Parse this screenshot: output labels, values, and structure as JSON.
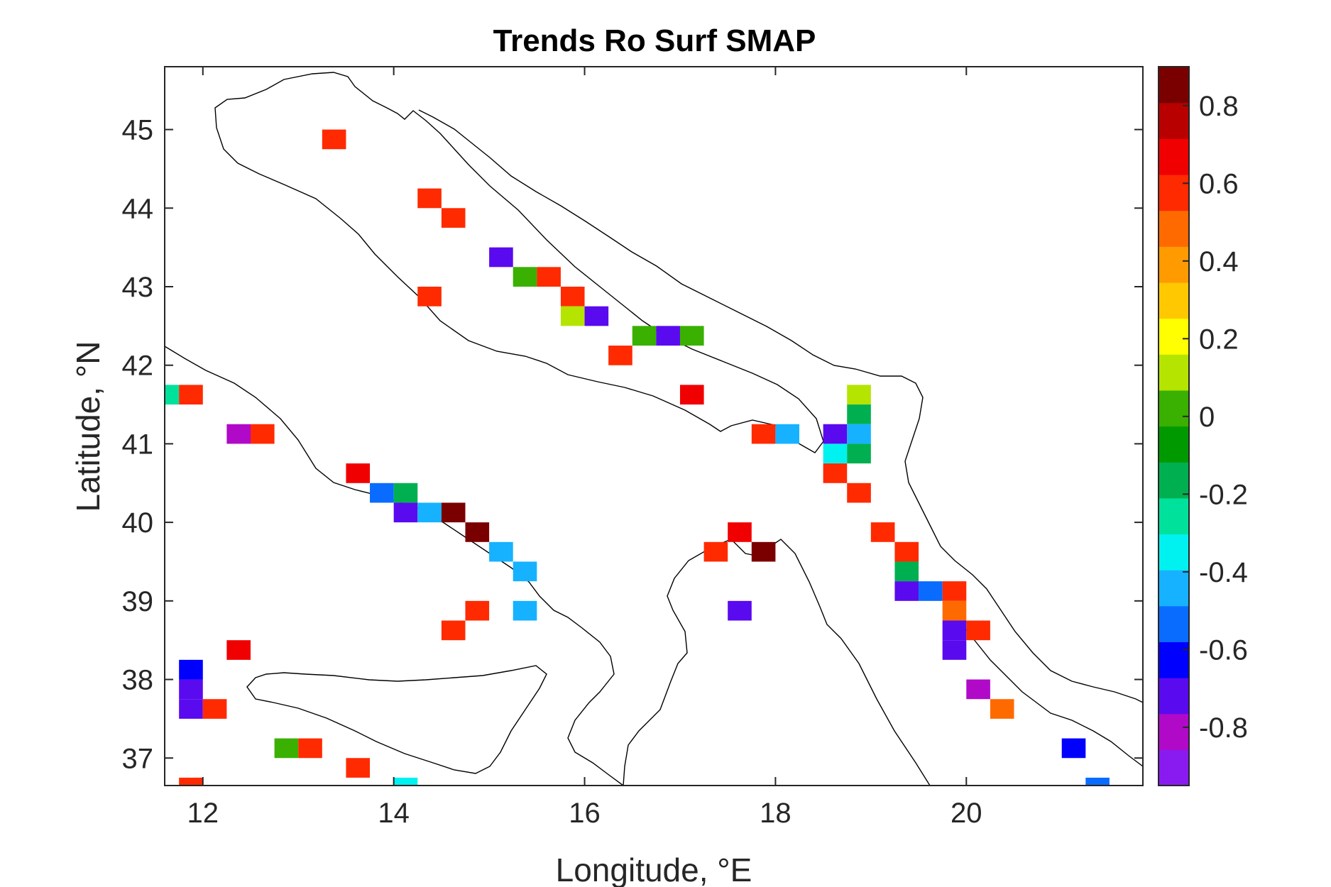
{
  "chart_data": {
    "type": "heatmap",
    "title": "Trends Ro Surf SMAP",
    "xlabel": "Longitude, °E",
    "ylabel": "Latitude, °N",
    "xlim": [
      11.6,
      21.85
    ],
    "ylim": [
      36.65,
      45.8
    ],
    "xticks": [
      "12",
      "14",
      "16",
      "18",
      "20"
    ],
    "yticks": [
      "37",
      "38",
      "39",
      "40",
      "41",
      "42",
      "43",
      "44",
      "45"
    ],
    "colorbar": {
      "range": [
        -0.95,
        0.9
      ],
      "ticks": [
        "-0.8",
        "-0.6",
        "-0.4",
        "-0.2",
        "0",
        "0.2",
        "0.4",
        "0.6",
        "0.8"
      ],
      "colormap": [
        "#8a1bf0",
        "#b00ac8",
        "#5a0aef",
        "#0000ff",
        "#0a6cff",
        "#16b2ff",
        "#00f2f0",
        "#00e19c",
        "#00b050",
        "#009a00",
        "#3ab000",
        "#b5e400",
        "#ffff00",
        "#ffc800",
        "#ff9a00",
        "#ff6a00",
        "#ff2a00",
        "#f00000",
        "#b80000",
        "#7a0000"
      ]
    },
    "cell_size_deg": 0.25,
    "cells": [
      {
        "lon": 13.375,
        "lat": 44.875,
        "value": 0.55
      },
      {
        "lon": 14.375,
        "lat": 44.125,
        "value": 0.55
      },
      {
        "lon": 14.625,
        "lat": 43.875,
        "value": 0.55
      },
      {
        "lon": 15.125,
        "lat": 43.375,
        "value": -0.75
      },
      {
        "lon": 15.375,
        "lat": 43.125,
        "value": 0.0
      },
      {
        "lon": 15.625,
        "lat": 43.125,
        "value": 0.55
      },
      {
        "lon": 14.375,
        "lat": 42.875,
        "value": 0.55
      },
      {
        "lon": 15.875,
        "lat": 42.875,
        "value": 0.55
      },
      {
        "lon": 15.875,
        "lat": 42.625,
        "value": 0.12
      },
      {
        "lon": 16.125,
        "lat": 42.625,
        "value": -0.75
      },
      {
        "lon": 16.625,
        "lat": 42.375,
        "value": 0.0
      },
      {
        "lon": 16.875,
        "lat": 42.375,
        "value": -0.75
      },
      {
        "lon": 17.125,
        "lat": 42.375,
        "value": 0.0
      },
      {
        "lon": 16.375,
        "lat": 42.125,
        "value": 0.55
      },
      {
        "lon": 11.625,
        "lat": 41.625,
        "value": -0.25
      },
      {
        "lon": 11.875,
        "lat": 41.625,
        "value": 0.55
      },
      {
        "lon": 17.125,
        "lat": 41.625,
        "value": 0.7
      },
      {
        "lon": 18.875,
        "lat": 41.625,
        "value": 0.15
      },
      {
        "lon": 18.875,
        "lat": 41.375,
        "value": -0.15
      },
      {
        "lon": 12.375,
        "lat": 41.125,
        "value": -0.8
      },
      {
        "lon": 12.625,
        "lat": 41.125,
        "value": 0.55
      },
      {
        "lon": 17.875,
        "lat": 41.125,
        "value": 0.55
      },
      {
        "lon": 18.125,
        "lat": 41.125,
        "value": -0.45
      },
      {
        "lon": 18.625,
        "lat": 41.125,
        "value": -0.75
      },
      {
        "lon": 18.875,
        "lat": 41.125,
        "value": -0.45
      },
      {
        "lon": 18.625,
        "lat": 40.875,
        "value": -0.35
      },
      {
        "lon": 18.875,
        "lat": 40.875,
        "value": -0.15
      },
      {
        "lon": 13.625,
        "lat": 40.625,
        "value": 0.7
      },
      {
        "lon": 18.625,
        "lat": 40.625,
        "value": 0.55
      },
      {
        "lon": 13.875,
        "lat": 40.375,
        "value": -0.55
      },
      {
        "lon": 14.125,
        "lat": 40.375,
        "value": -0.15
      },
      {
        "lon": 18.875,
        "lat": 40.375,
        "value": 0.55
      },
      {
        "lon": 14.125,
        "lat": 40.125,
        "value": -0.75
      },
      {
        "lon": 14.375,
        "lat": 40.125,
        "value": -0.45
      },
      {
        "lon": 14.625,
        "lat": 40.125,
        "value": 0.9
      },
      {
        "lon": 14.875,
        "lat": 39.875,
        "value": 0.9
      },
      {
        "lon": 17.625,
        "lat": 39.875,
        "value": 0.7
      },
      {
        "lon": 19.125,
        "lat": 39.875,
        "value": 0.55
      },
      {
        "lon": 15.125,
        "lat": 39.625,
        "value": -0.45
      },
      {
        "lon": 17.375,
        "lat": 39.625,
        "value": 0.55
      },
      {
        "lon": 17.875,
        "lat": 39.625,
        "value": 0.9
      },
      {
        "lon": 19.375,
        "lat": 39.625,
        "value": 0.55
      },
      {
        "lon": 15.375,
        "lat": 39.375,
        "value": -0.45
      },
      {
        "lon": 19.375,
        "lat": 39.375,
        "value": -0.15
      },
      {
        "lon": 19.375,
        "lat": 39.125,
        "value": -0.75
      },
      {
        "lon": 19.625,
        "lat": 39.125,
        "value": -0.55
      },
      {
        "lon": 19.875,
        "lat": 39.125,
        "value": 0.55
      },
      {
        "lon": 14.875,
        "lat": 38.875,
        "value": 0.55
      },
      {
        "lon": 15.375,
        "lat": 38.875,
        "value": -0.45
      },
      {
        "lon": 17.625,
        "lat": 38.875,
        "value": -0.75
      },
      {
        "lon": 19.875,
        "lat": 38.875,
        "value": 0.45
      },
      {
        "lon": 14.625,
        "lat": 38.625,
        "value": 0.55
      },
      {
        "lon": 19.875,
        "lat": 38.625,
        "value": -0.75
      },
      {
        "lon": 20.125,
        "lat": 38.625,
        "value": 0.55
      },
      {
        "lon": 12.375,
        "lat": 38.375,
        "value": 0.7
      },
      {
        "lon": 19.875,
        "lat": 38.375,
        "value": -0.75
      },
      {
        "lon": 11.875,
        "lat": 38.125,
        "value": -0.6
      },
      {
        "lon": 11.875,
        "lat": 37.875,
        "value": -0.75
      },
      {
        "lon": 20.125,
        "lat": 37.875,
        "value": -0.8
      },
      {
        "lon": 11.875,
        "lat": 37.625,
        "value": -0.75
      },
      {
        "lon": 12.125,
        "lat": 37.625,
        "value": 0.55
      },
      {
        "lon": 20.375,
        "lat": 37.625,
        "value": 0.45
      },
      {
        "lon": 12.875,
        "lat": 37.125,
        "value": 0.0
      },
      {
        "lon": 13.125,
        "lat": 37.125,
        "value": 0.55
      },
      {
        "lon": 21.125,
        "lat": 37.125,
        "value": -0.6
      },
      {
        "lon": 13.625,
        "lat": 36.875,
        "value": 0.55
      },
      {
        "lon": 11.875,
        "lat": 36.625,
        "value": 0.55
      },
      {
        "lon": 14.125,
        "lat": 36.625,
        "value": -0.35
      },
      {
        "lon": 21.375,
        "lat": 36.625,
        "value": -0.55
      }
    ]
  }
}
